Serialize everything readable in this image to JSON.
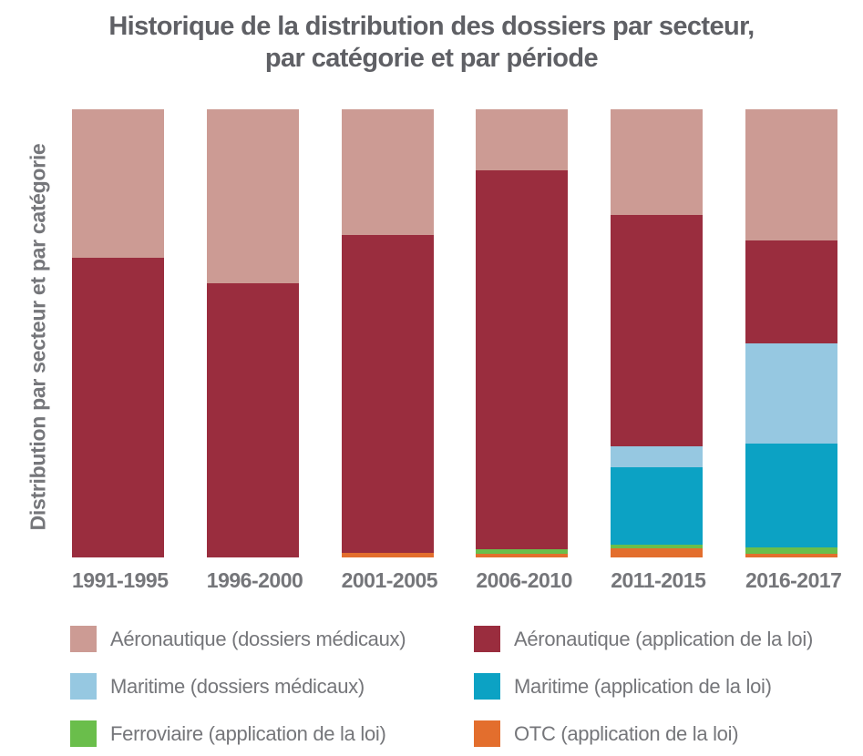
{
  "title": {
    "line1": "Historique de la distribution des dossiers par secteur,",
    "line2": "par catégorie et par période"
  },
  "y_axis_label": "Distribution par secteur et par catégorie",
  "colors": {
    "background": "#ffffff",
    "title_text": "#5f6065",
    "axis_text": "#75767a",
    "legend_text": "#75767a",
    "aero_medical": "#cc9b94",
    "aero_enforcement": "#9a2d3e",
    "maritime_medical": "#96c8e1",
    "maritime_enforcement": "#0ca2c4",
    "rail_enforcement": "#6abe4b",
    "otc_enforcement": "#e36e2d"
  },
  "chart_data": {
    "type": "bar",
    "stacked": true,
    "orientation": "vertical",
    "units": "percent_of_column_height",
    "title": "Historique de la distribution des dossiers par secteur, par catégorie et par période",
    "ylabel": "Distribution par secteur et par catégorie",
    "xlabel": "",
    "grid": false,
    "value_axis_visible": false,
    "legend_position": "bottom",
    "categories": [
      "1991-1995",
      "1996-2000",
      "2001-2005",
      "2006-2010",
      "2011-2015",
      "2016-2017"
    ],
    "series": [
      {
        "name": "Aéronautique (dossiers médicaux)",
        "color": "#cc9b94",
        "stack_position": "top",
        "values": [
          33.1,
          38.8,
          28.0,
          13.6,
          23.6,
          29.3
        ]
      },
      {
        "name": "Aéronautique (application de la loi)",
        "color": "#9a2d3e",
        "stack_position": "2",
        "values": [
          66.9,
          61.2,
          71.0,
          84.6,
          51.6,
          23.0
        ]
      },
      {
        "name": "Maritime (dossiers médicaux)",
        "color": "#96c8e1",
        "stack_position": "3",
        "values": [
          0,
          0,
          0,
          0,
          4.7,
          22.2
        ]
      },
      {
        "name": "Maritime (application de la loi)",
        "color": "#0ca2c4",
        "stack_position": "4",
        "values": [
          0,
          0,
          0,
          0,
          17.3,
          23.2
        ]
      },
      {
        "name": "Ferroviaire (application de la loi)",
        "color": "#6abe4b",
        "stack_position": "5",
        "values": [
          0,
          0,
          0,
          0.9,
          0.7,
          1.4
        ]
      },
      {
        "name": "OTC (application de la loi)",
        "color": "#e36e2d",
        "stack_position": "bottom",
        "values": [
          0,
          0,
          1.0,
          0.9,
          2.1,
          0.9
        ]
      }
    ]
  },
  "legend": {
    "items": [
      {
        "label": "Aéronautique (dossiers médicaux)",
        "color": "#cc9b94"
      },
      {
        "label": "Aéronautique (application de la loi)",
        "color": "#9a2d3e"
      },
      {
        "label": "Maritime (dossiers médicaux)",
        "color": "#96c8e1"
      },
      {
        "label": "Maritime (application de la loi)",
        "color": "#0ca2c4"
      },
      {
        "label": "Ferroviaire (application de la loi)",
        "color": "#6abe4b"
      },
      {
        "label": "OTC (application de la loi)",
        "color": "#e36e2d"
      }
    ]
  }
}
